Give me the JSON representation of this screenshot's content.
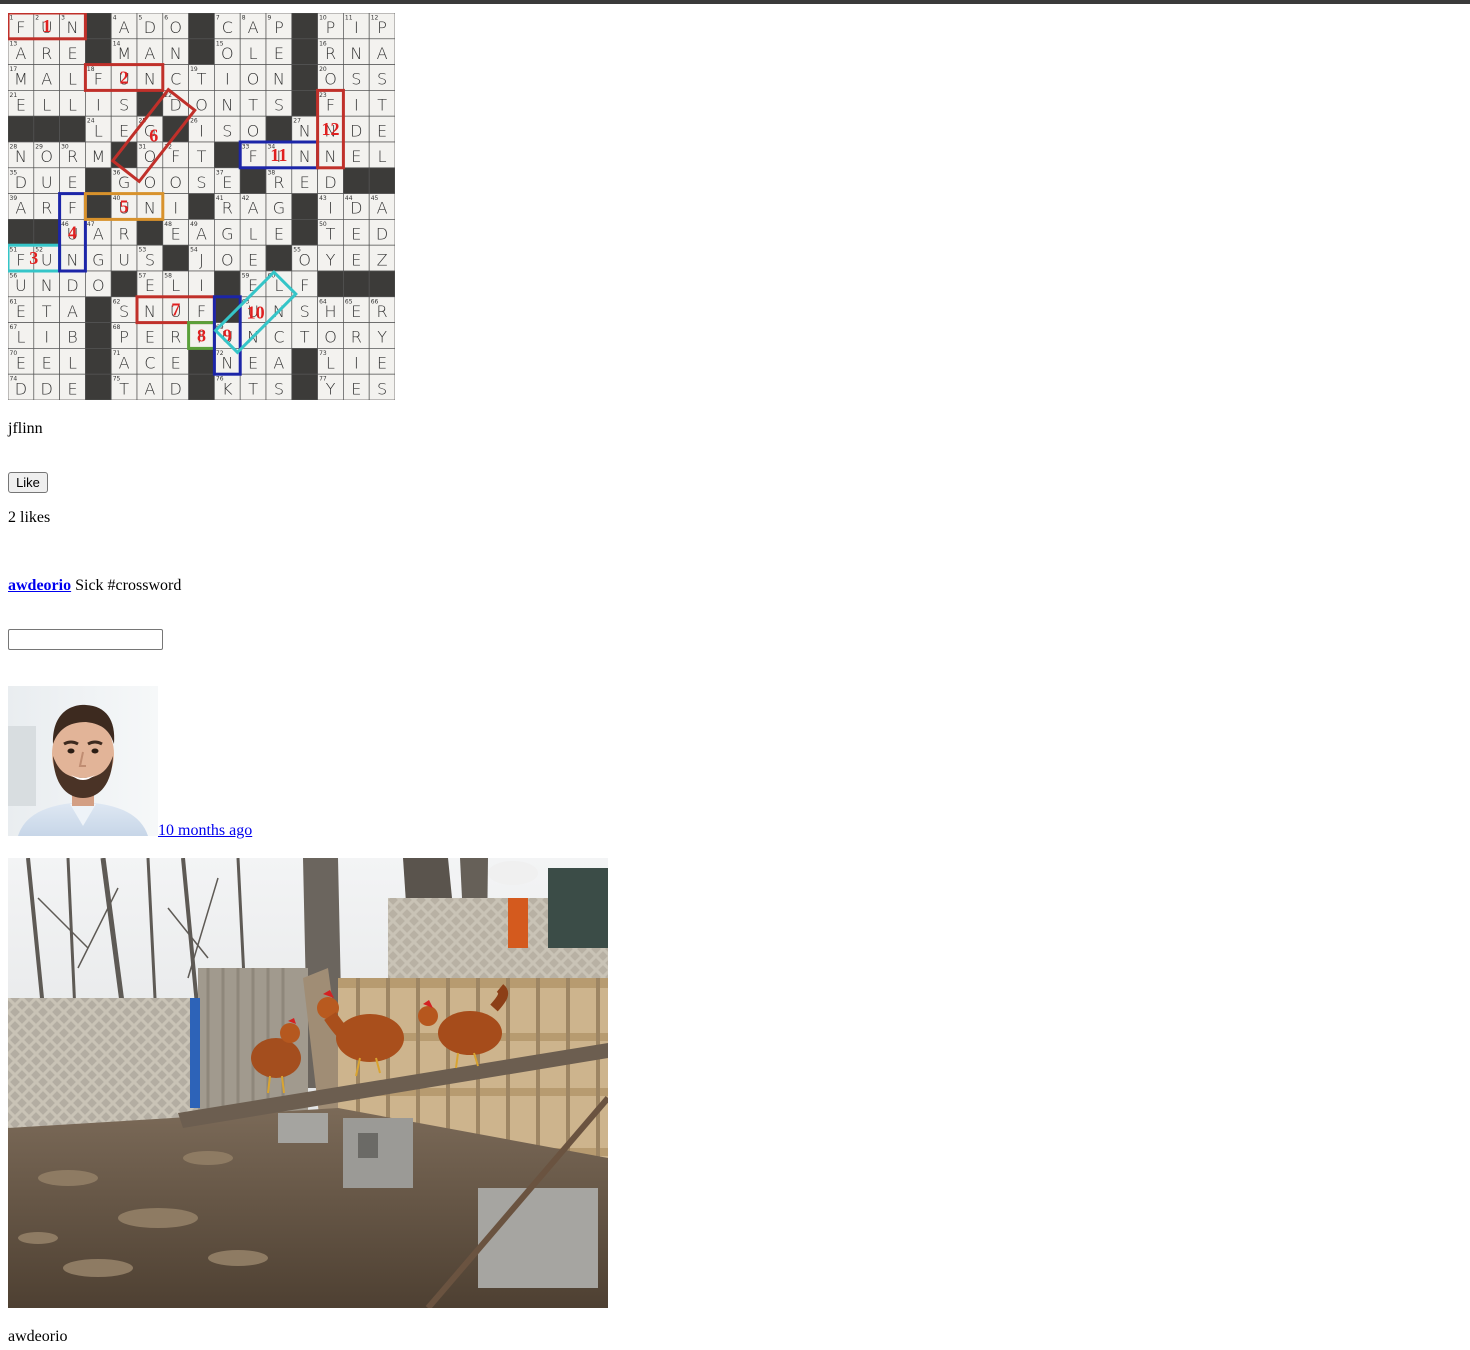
{
  "post1": {
    "owner": "jflinn",
    "like_label": "Like",
    "likes_text": "2 likes",
    "comment": {
      "author": "awdeorio",
      "text": "Sick #crossword"
    },
    "comment_input_value": ""
  },
  "post2": {
    "timestamp": "10 months ago",
    "owner": "awdeorio"
  },
  "crossword": {
    "rows": [
      "FUN#ADO#CAP#PIP",
      "ARE#MAN#OLE#RNA",
      "MALFUNCTION#OSS",
      "ELLIS#DONTS#FIT",
      "###LEG#ISO#NNDE",
      "NORM#OFT#FINNEL",
      "DUE#GOOSE#RED##",
      "ARF#UNI#RAG#IDA",
      "##UAR#EAGLE#TED",
      "FUNGUS#JOE#OYEZ",
      "UNDO#ELI#ELF###",
      "ETA#SNUF#UNSHER",
      "LIB#PERFUNCTORY",
      "EEL#ACE#NEA#LIE",
      "DDE#TAD#KTS#YES"
    ],
    "markers": [
      "1",
      "2",
      "3",
      "4",
      "5",
      "6",
      "7",
      "8",
      "9",
      "10",
      "11",
      "12"
    ]
  }
}
